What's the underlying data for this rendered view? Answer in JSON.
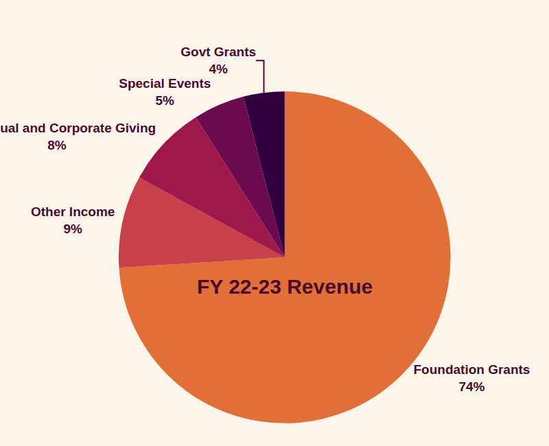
{
  "chart_data": {
    "type": "pie",
    "title": "FY 22-23 Revenue",
    "categories": [
      "Foundation Grants",
      "Other Income",
      "Individual and Corporate Giving",
      "Special Events",
      "Govt Grants"
    ],
    "values": [
      74,
      9,
      8,
      5,
      4
    ],
    "value_labels": [
      "74%",
      "9%",
      "8%",
      "5%",
      "4%"
    ],
    "colors": [
      "#e07038",
      "#c8404a",
      "#9e184c",
      "#6c0a50",
      "#33003f"
    ],
    "data_labels": true
  }
}
